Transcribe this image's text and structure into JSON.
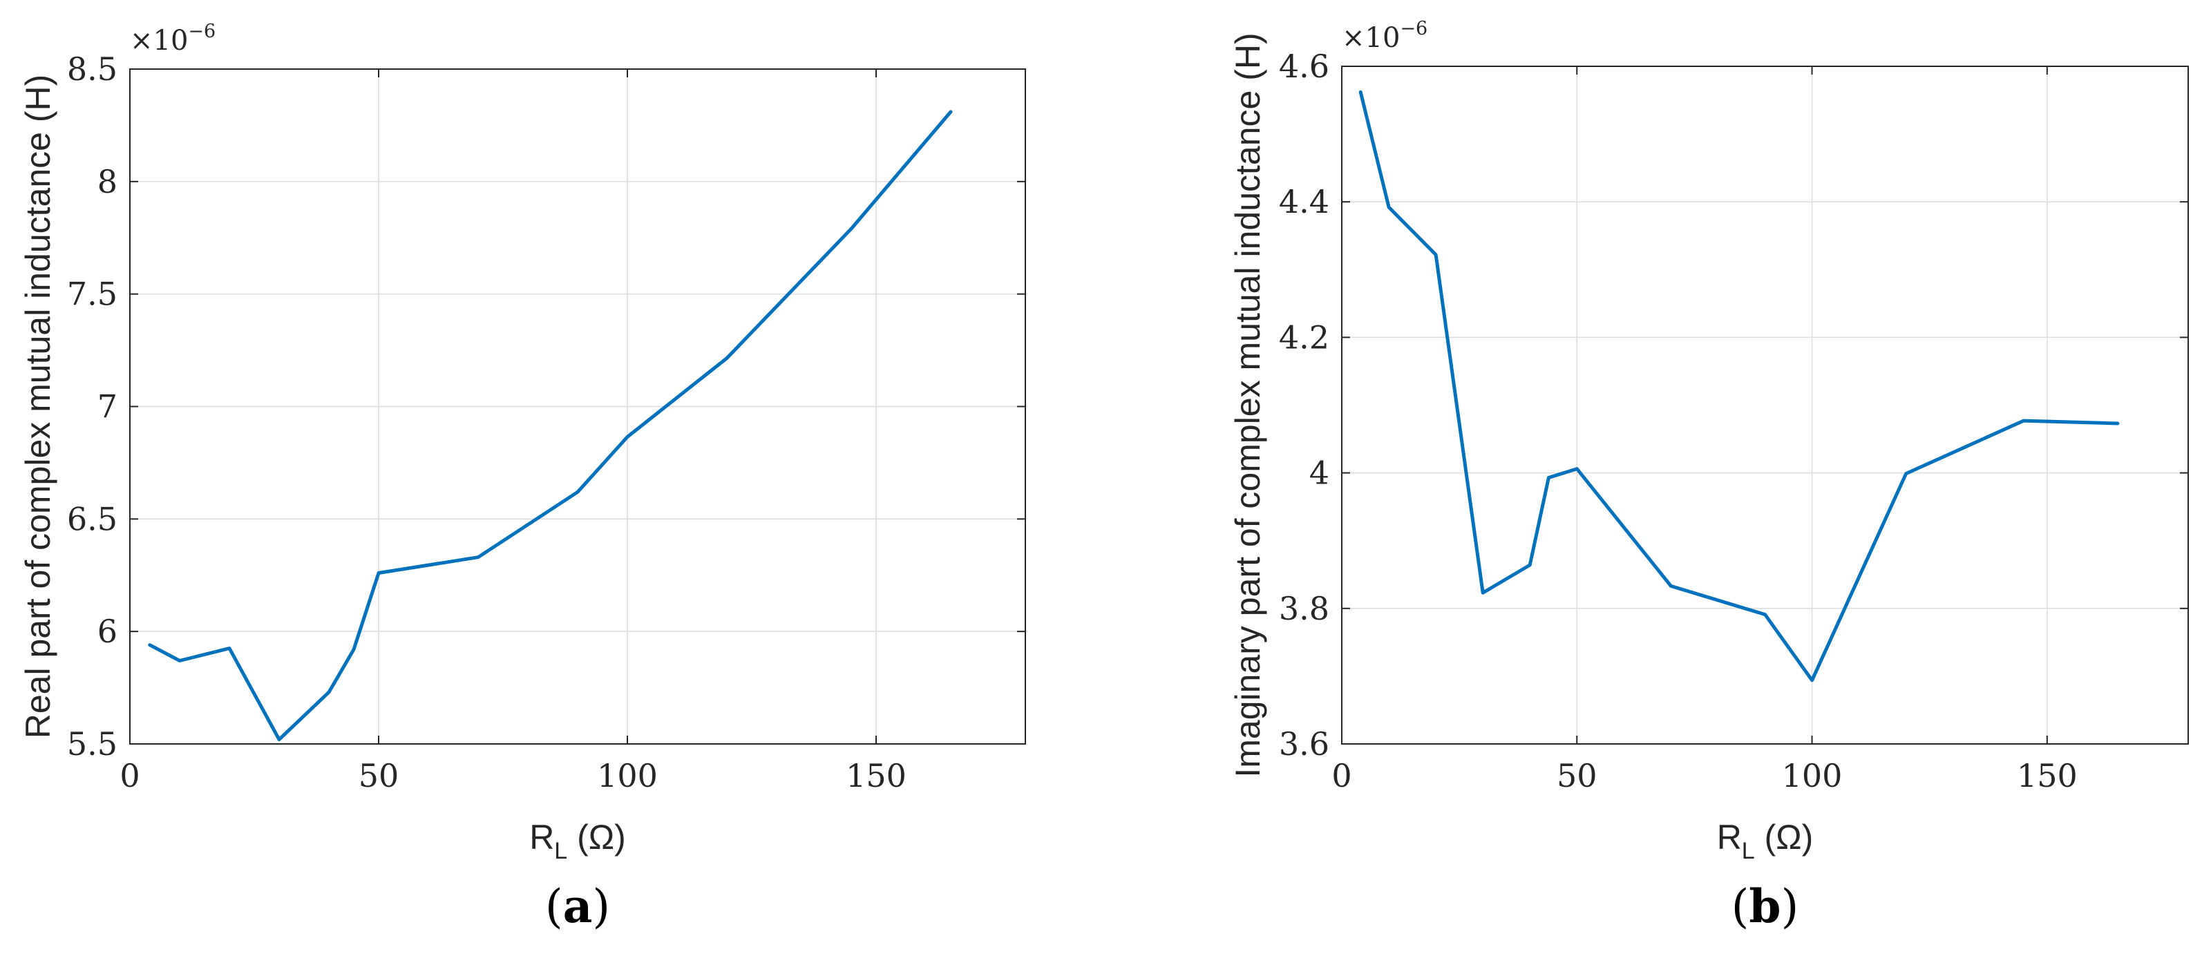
{
  "chart_data": [
    {
      "type": "line",
      "panel_label": {
        "open": "(",
        "letter": "a",
        "close": ")"
      },
      "ylabel": "Real part of complex mutual inductance (H)",
      "xlabel": {
        "main": "R",
        "sub": "L",
        "unit": " (Ω)"
      },
      "y_multiplier": {
        "base": "×10",
        "exponent": "−6"
      },
      "xlim": [
        0,
        180
      ],
      "ylim": [
        5.5,
        8.5
      ],
      "xticks": [
        0,
        50,
        100,
        150
      ],
      "xtick_labels": [
        "0",
        "50",
        "100",
        "150"
      ],
      "yticks": [
        5.5,
        6,
        6.5,
        7,
        7.5,
        8,
        8.5
      ],
      "ytick_labels": [
        "5.5",
        "6",
        "6.5",
        "7",
        "7.5",
        "8",
        "8.5"
      ],
      "grid": true,
      "line_color": "#0072BD",
      "series": [
        {
          "x": [
            4,
            10,
            20,
            30,
            40,
            45,
            50,
            70,
            90,
            100,
            120,
            145,
            165
          ],
          "y": [
            5.94,
            5.87,
            5.925,
            5.52,
            5.73,
            5.92,
            6.26,
            6.33,
            6.62,
            6.865,
            7.215,
            7.79,
            8.31
          ]
        }
      ]
    },
    {
      "type": "line",
      "panel_label": {
        "open": "(",
        "letter": "b",
        "close": ")"
      },
      "ylabel": "Imaginary part of complex mutual inductance (H)",
      "xlabel": {
        "main": "R",
        "sub": "L",
        "unit": " (Ω)"
      },
      "y_multiplier": {
        "base": "×10",
        "exponent": "−6"
      },
      "xlim": [
        0,
        180
      ],
      "ylim": [
        3.6,
        4.6
      ],
      "xticks": [
        0,
        50,
        100,
        150
      ],
      "xtick_labels": [
        "0",
        "50",
        "100",
        "150"
      ],
      "yticks": [
        3.6,
        3.8,
        4.0,
        4.2,
        4.4,
        4.6
      ],
      "ytick_labels": [
        "3.6",
        "3.8",
        "4",
        "4.2",
        "4.4",
        "4.6"
      ],
      "grid": true,
      "line_color": "#0072BD",
      "series": [
        {
          "x": [
            4,
            10,
            20,
            30,
            40,
            44,
            50,
            70,
            90,
            100,
            120,
            145,
            165
          ],
          "y": [
            4.562,
            4.392,
            4.322,
            3.823,
            3.864,
            3.993,
            4.006,
            3.833,
            3.791,
            3.694,
            3.999,
            4.077,
            4.073
          ]
        }
      ]
    }
  ]
}
